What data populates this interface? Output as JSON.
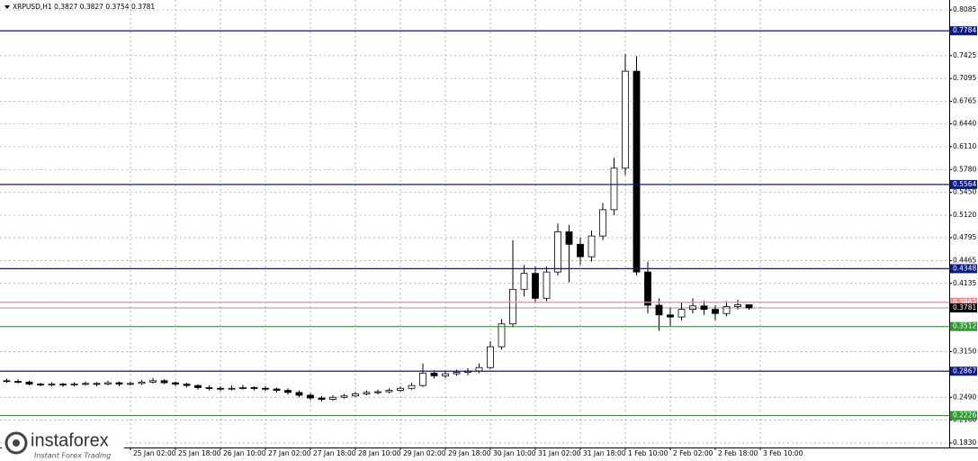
{
  "chart_data": {
    "type": "candlestick",
    "title": "XRPUSD,H1 0.3827 0.3827 0.3754 0.3781",
    "categories": [
      null,
      null,
      null,
      null,
      null,
      null,
      null,
      null,
      null,
      null,
      null,
      "25 Jan 02:00",
      null,
      null,
      null,
      "25 Jan 18:00",
      null,
      null,
      null,
      "26 Jan 10:00",
      null,
      null,
      null,
      "27 Jan 02:00",
      null,
      null,
      null,
      "27 Jan 18:00",
      null,
      null,
      null,
      "28 Jan 10:00",
      null,
      null,
      null,
      "29 Jan 02:00",
      null,
      null,
      null,
      "29 Jan 18:00",
      null,
      null,
      null,
      "30 Jan 10:00",
      null,
      null,
      null,
      "31 Jan 02:00",
      null,
      null,
      null,
      "31 Jan 18:00",
      null,
      null,
      null,
      "1 Feb 10:00",
      null,
      null,
      null,
      "2 Feb 02:00",
      null,
      null,
      null,
      "2 Feb 18:00",
      null,
      null,
      null,
      "3 Feb 10:00"
    ],
    "open": [
      0.273,
      0.272,
      0.271,
      0.268,
      0.267,
      0.268,
      0.267,
      0.268,
      0.269,
      0.268,
      0.27,
      0.268,
      0.269,
      0.271,
      0.273,
      0.27,
      0.268,
      0.266,
      0.263,
      0.262,
      0.261,
      0.262,
      0.263,
      0.262,
      0.261,
      0.259,
      0.256,
      0.252,
      0.248,
      0.246,
      0.249,
      0.251,
      0.254,
      0.256,
      0.257,
      0.259,
      0.262,
      0.266,
      0.284,
      0.28,
      0.283,
      0.285,
      0.287,
      0.292,
      0.322,
      0.355,
      0.405,
      0.428,
      0.392,
      0.43,
      0.488,
      0.47,
      0.452,
      0.482,
      0.52,
      0.58,
      0.72,
      0.43,
      0.382,
      0.368,
      0.365,
      0.376,
      0.381,
      0.376,
      0.37,
      0.38,
      0.3827,
      null
    ],
    "high": [
      0.276,
      0.275,
      0.273,
      0.27,
      0.271,
      0.27,
      0.271,
      0.272,
      0.271,
      0.273,
      0.272,
      0.272,
      0.274,
      0.277,
      0.275,
      0.272,
      0.27,
      0.268,
      0.266,
      0.265,
      0.266,
      0.267,
      0.265,
      0.265,
      0.263,
      0.262,
      0.259,
      0.255,
      0.251,
      0.252,
      0.254,
      0.257,
      0.259,
      0.26,
      0.262,
      0.265,
      0.27,
      0.298,
      0.288,
      0.287,
      0.289,
      0.291,
      0.298,
      0.33,
      0.362,
      0.476,
      0.44,
      0.438,
      0.438,
      0.5,
      0.498,
      0.48,
      0.49,
      0.53,
      0.595,
      0.745,
      0.742,
      0.445,
      0.392,
      0.378,
      0.386,
      0.392,
      0.388,
      0.382,
      0.388,
      0.39,
      0.3827,
      null
    ],
    "low": [
      0.27,
      0.269,
      0.266,
      0.265,
      0.265,
      0.264,
      0.265,
      0.266,
      0.265,
      0.266,
      0.265,
      0.266,
      0.267,
      0.269,
      0.268,
      0.265,
      0.263,
      0.26,
      0.259,
      0.258,
      0.259,
      0.26,
      0.259,
      0.258,
      0.256,
      0.253,
      0.249,
      0.245,
      0.243,
      0.244,
      0.247,
      0.249,
      0.252,
      0.253,
      0.255,
      0.257,
      0.26,
      0.264,
      0.276,
      0.277,
      0.28,
      0.281,
      0.284,
      0.29,
      0.318,
      0.35,
      0.395,
      0.385,
      0.388,
      0.425,
      0.415,
      0.44,
      0.445,
      0.476,
      0.512,
      0.57,
      0.425,
      0.37,
      0.345,
      0.352,
      0.36,
      0.37,
      0.368,
      0.36,
      0.366,
      0.376,
      0.3754,
      null
    ],
    "close": [
      0.272,
      0.271,
      0.268,
      0.267,
      0.268,
      0.267,
      0.268,
      0.269,
      0.268,
      0.27,
      0.268,
      0.269,
      0.271,
      0.273,
      0.27,
      0.268,
      0.266,
      0.263,
      0.262,
      0.261,
      0.262,
      0.263,
      0.262,
      0.261,
      0.259,
      0.256,
      0.252,
      0.248,
      0.246,
      0.249,
      0.251,
      0.254,
      0.256,
      0.257,
      0.259,
      0.262,
      0.266,
      0.284,
      0.28,
      0.283,
      0.285,
      0.287,
      0.292,
      0.322,
      0.355,
      0.405,
      0.428,
      0.392,
      0.43,
      0.488,
      0.47,
      0.452,
      0.482,
      0.52,
      0.58,
      0.72,
      0.43,
      0.382,
      0.368,
      0.365,
      0.376,
      0.381,
      0.376,
      0.37,
      0.38,
      0.3827,
      0.3781,
      null
    ],
    "ylim": [
      0.1765,
      0.8229
    ],
    "yticks": [
      0.8085,
      0.7425,
      0.7095,
      0.6765,
      {
        "value": 0.644,
        "label": "0.6440"
      },
      {
        "value": 0.611,
        "label": "0.6110"
      },
      {
        "value": 0.578,
        "label": "0.5780"
      },
      {
        "value": 0.545,
        "label": "0.5450"
      },
      {
        "value": 0.512,
        "label": "0.5120"
      },
      0.4795,
      0.4465,
      0.4135,
      {
        "value": 0.315,
        "label": "0.3150"
      },
      {
        "value": 0.249,
        "label": "0.2490"
      },
      {
        "value": 0.216,
        "label": "0.2160"
      },
      {
        "value": 0.183,
        "label": "0.1830"
      }
    ],
    "grid": true,
    "levels": [
      {
        "value": 0.7784,
        "color": "#0c1a8c"
      },
      {
        "value": 0.5564,
        "color": "#0c1a8c"
      },
      {
        "value": 0.4348,
        "color": "#0c1a8c"
      },
      {
        "value": 0.3862,
        "color": "#f08c8c"
      },
      {
        "value": 0.3781,
        "color": "#000000"
      },
      {
        "value": 0.3512,
        "color": "#2f9a2f"
      },
      {
        "value": 0.2867,
        "color": "#0c1a8c"
      },
      {
        "value": 0.2226,
        "color": "#2f9a2f"
      }
    ],
    "watermark": {
      "brand": "instaforex",
      "tagline": "Instant Forex Trading"
    }
  }
}
